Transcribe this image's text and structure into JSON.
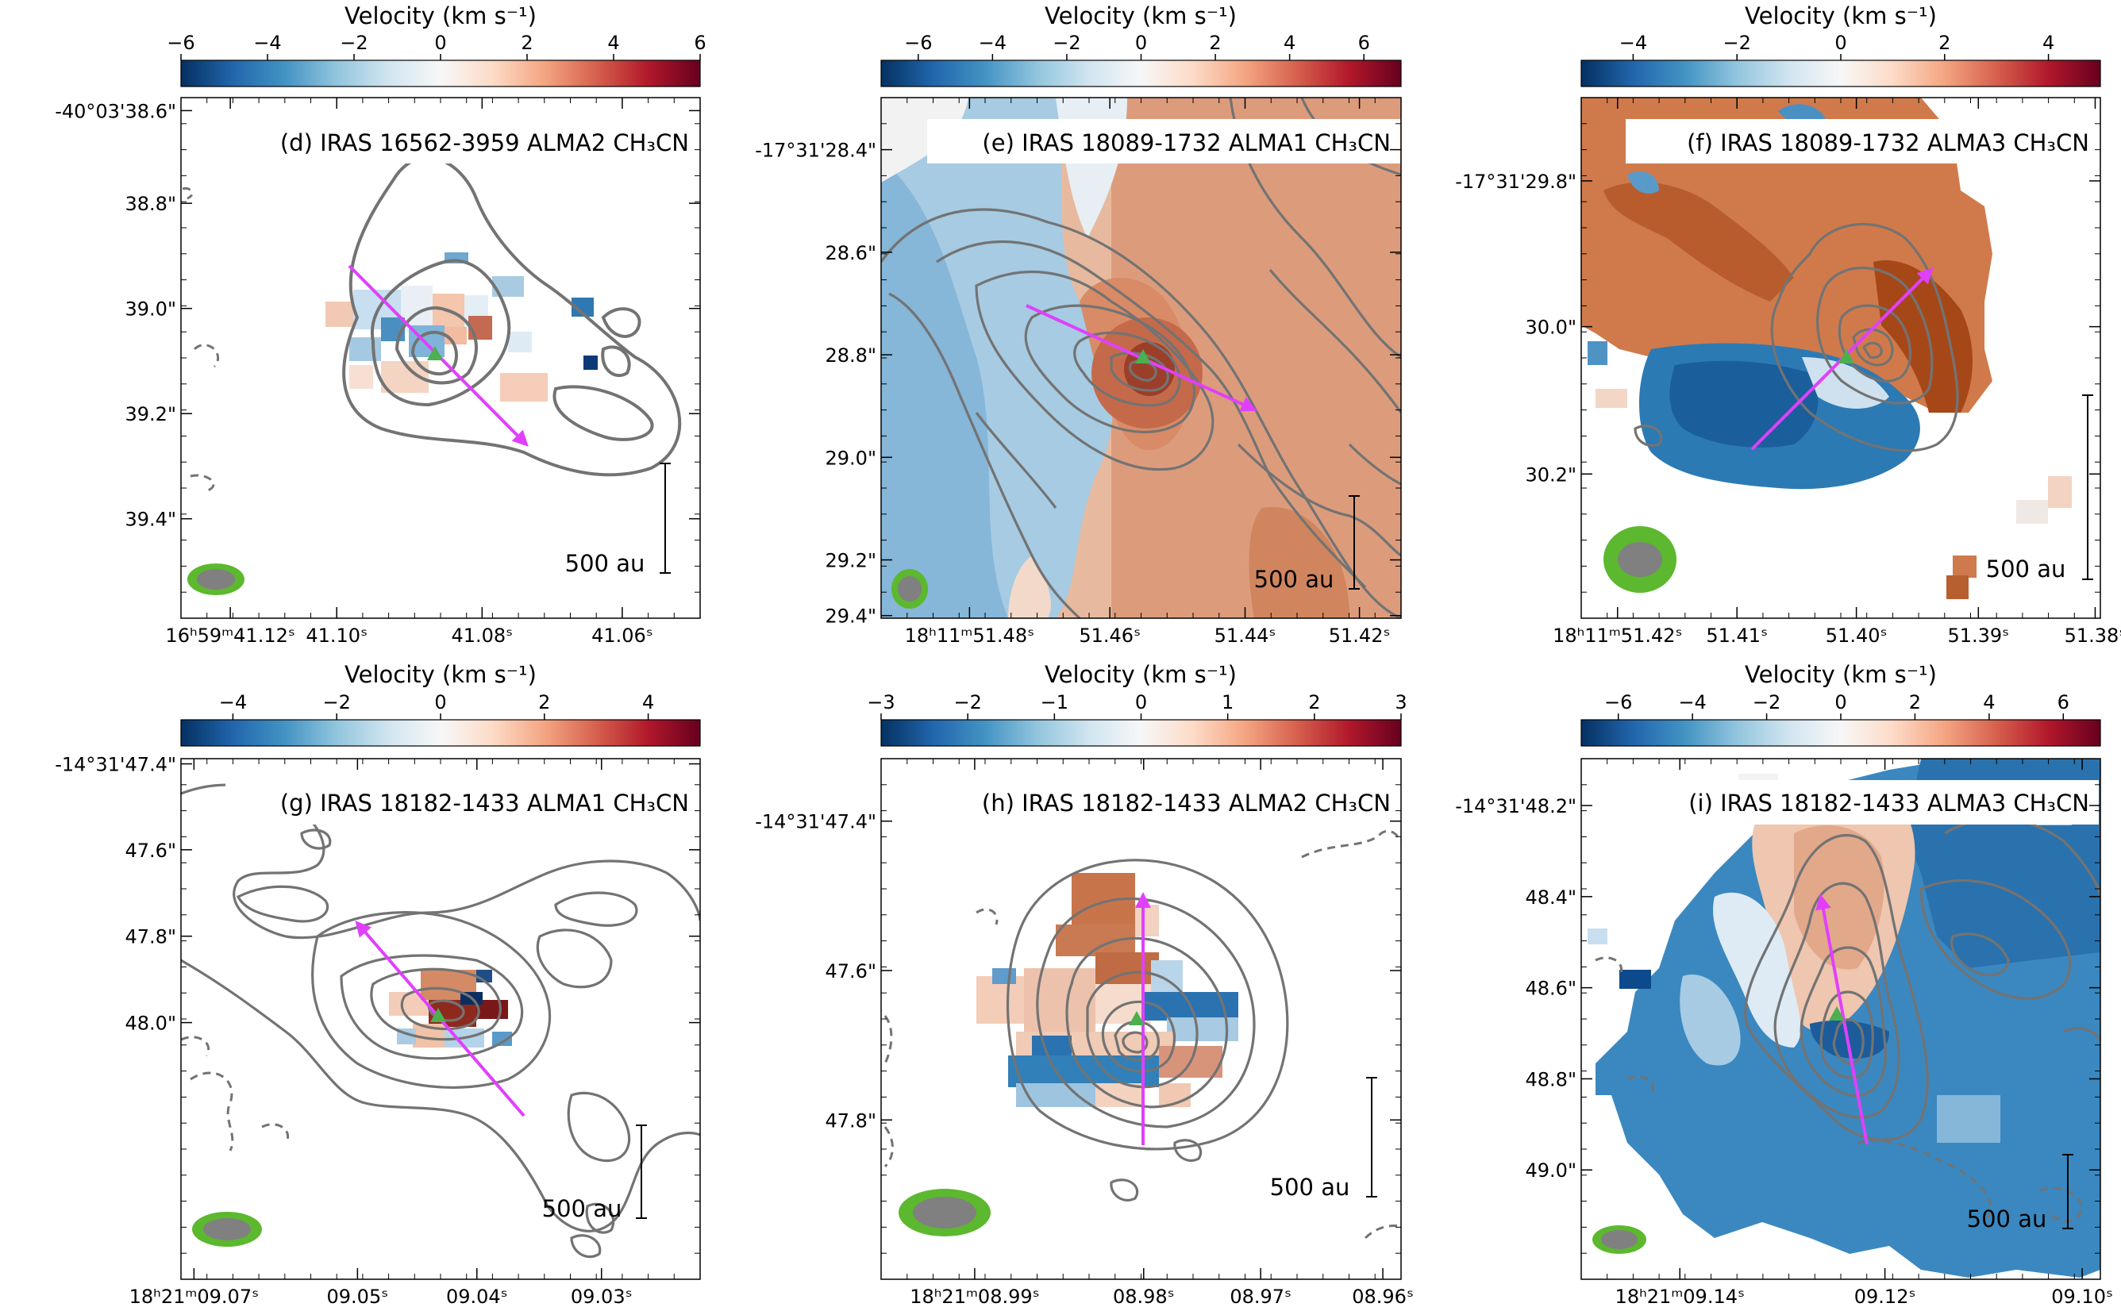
{
  "chart_data": [
    {
      "type": "heatmap",
      "panel": "d",
      "title": "(d) IRAS 16562-3959 ALMA2 CH₃CN",
      "colorbar": {
        "label": "Velocity (km s⁻¹)",
        "range": [
          -6,
          6
        ],
        "ticks": [
          "−6",
          "−4",
          "−2",
          "0",
          "2",
          "4",
          "6"
        ]
      },
      "xticks": [
        "16ʰ59ᵐ41.12ˢ",
        "41.10ˢ",
        "41.08ˢ",
        "41.06ˢ"
      ],
      "yticks": [
        "-40°03'38.6\"",
        "38.8\"",
        "39.0\"",
        "39.2\"",
        "39.4\""
      ],
      "scalebar": "500 au"
    },
    {
      "type": "heatmap",
      "panel": "e",
      "title": "(e) IRAS 18089-1732 ALMA1 CH₃CN",
      "colorbar": {
        "label": "Velocity (km s⁻¹)",
        "range": [
          -7,
          7
        ],
        "ticks": [
          "−6",
          "−4",
          "−2",
          "0",
          "2",
          "4",
          "6"
        ]
      },
      "xticks": [
        "18ʰ11ᵐ51.48ˢ",
        "51.46ˢ",
        "51.44ˢ",
        "51.42ˢ"
      ],
      "yticks": [
        "-17°31'28.4\"",
        "28.6\"",
        "28.8\"",
        "29.0\"",
        "29.2\"",
        "29.4\""
      ],
      "scalebar": "500 au"
    },
    {
      "type": "heatmap",
      "panel": "f",
      "title": "(f) IRAS 18089-1732 ALMA3 CH₃CN",
      "colorbar": {
        "label": "Velocity (km s⁻¹)",
        "range": [
          -5,
          5
        ],
        "ticks": [
          "−4",
          "−2",
          "0",
          "2",
          "4"
        ]
      },
      "xticks": [
        "18ʰ11ᵐ51.42ˢ",
        "51.41ˢ",
        "51.40ˢ",
        "51.39ˢ",
        "51.38ˢ"
      ],
      "yticks": [
        "-17°31'29.8\"",
        "30.0\"",
        "30.2\""
      ],
      "scalebar": "500 au"
    },
    {
      "type": "heatmap",
      "panel": "g",
      "title": "(g) IRAS 18182-1433 ALMA1 CH₃CN",
      "colorbar": {
        "label": "Velocity (km s⁻¹)",
        "range": [
          -5,
          5
        ],
        "ticks": [
          "−4",
          "−2",
          "0",
          "2",
          "4"
        ]
      },
      "xticks": [
        "18ʰ21ᵐ09.07ˢ",
        "09.05ˢ",
        "09.04ˢ",
        "09.03ˢ"
      ],
      "yticks": [
        "-14°31'47.4\"",
        "47.6\"",
        "47.8\"",
        "48.0\""
      ],
      "scalebar": "500 au"
    },
    {
      "type": "heatmap",
      "panel": "h",
      "title": "(h) IRAS 18182-1433 ALMA2 CH₃CN",
      "colorbar": {
        "label": "Velocity (km s⁻¹)",
        "range": [
          -3,
          3
        ],
        "ticks": [
          "−3",
          "−2",
          "−1",
          "0",
          "1",
          "2",
          "3"
        ]
      },
      "xticks": [
        "18ʰ21ᵐ08.99ˢ",
        "08.98ˢ",
        "08.97ˢ",
        "08.96ˢ"
      ],
      "yticks": [
        "-14°31'47.4\"",
        "47.6\"",
        "47.8\""
      ],
      "scalebar": "500 au"
    },
    {
      "type": "heatmap",
      "panel": "i",
      "title": "(i) IRAS 18182-1433 ALMA3 CH₃CN",
      "colorbar": {
        "label": "Velocity (km s⁻¹)",
        "range": [
          -7,
          7
        ],
        "ticks": [
          "−6",
          "−4",
          "−2",
          "0",
          "2",
          "4",
          "6"
        ]
      },
      "xticks": [
        "18ʰ21ᵐ09.14ˢ",
        "09.12ˢ",
        "09.10ˢ"
      ],
      "yticks": [
        "-14°31'48.2\"",
        "48.4\"",
        "48.6\"",
        "48.8\"",
        "49.0\""
      ],
      "scalebar": "500 au"
    }
  ],
  "colors": {
    "colormap": [
      "#053061",
      "#2166ac",
      "#4393c3",
      "#92c5de",
      "#d1e5f0",
      "#f7f7f7",
      "#fddbc7",
      "#f4a582",
      "#d6604d",
      "#b2182b",
      "#67001f"
    ],
    "contour": "#737373",
    "outflow_arrow": "#e040fb",
    "source_marker": "#4caf50",
    "beam_outer": "#5cb82e",
    "beam_inner": "#808080"
  }
}
